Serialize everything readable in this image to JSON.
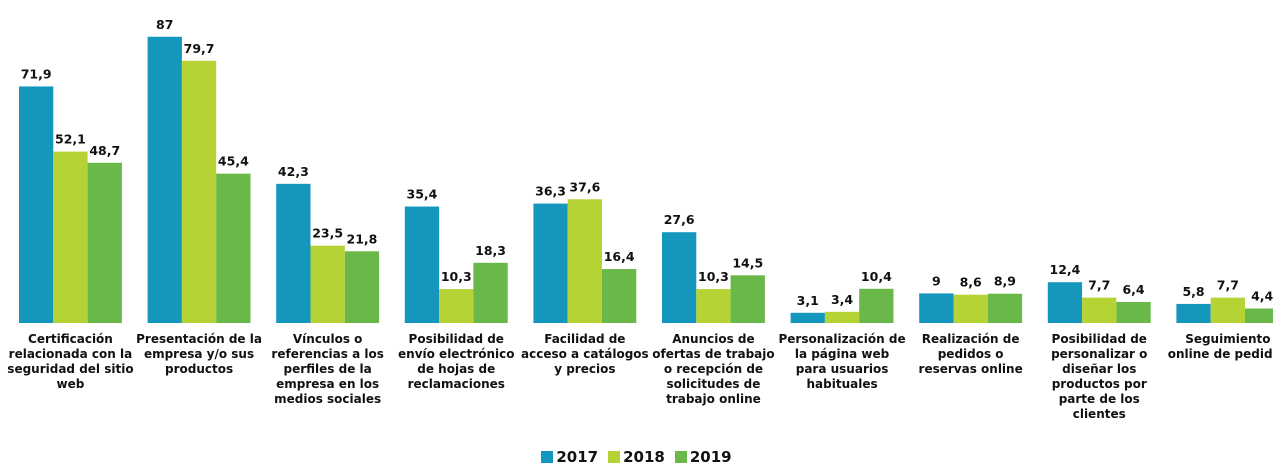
{
  "chart_data": {
    "type": "bar",
    "categories": [
      "Certificación relacionada con la seguridad del sitio web",
      "Presentación de la empresa y/o sus productos",
      "Vínculos o referencias a los perfiles de la empresa en los medios sociales",
      "Posibilidad de envío electrónico de hojas de reclamaciones",
      "Facilidad de acceso a catálogos y precios",
      "Anuncios de ofertas de trabajo o recepción de solicitudes de trabajo online",
      "Personalización de la página web para usuarios habituales",
      "Realización de pedidos o reservas online",
      "Posibilidad de personalizar o diseñar los productos por parte de los clientes",
      "Seguimiento online de pedidos"
    ],
    "series": [
      {
        "name": "2017",
        "color": "#1597bd",
        "values": [
          71.9,
          87,
          42.3,
          35.4,
          36.3,
          27.6,
          3.1,
          9,
          12.4,
          5.8
        ],
        "value_labels": [
          "71,9",
          "87",
          "42,3",
          "35,4",
          "36,3",
          "27,6",
          "3,1",
          "9",
          "12,4",
          "5,8"
        ]
      },
      {
        "name": "2018",
        "color": "#b5d334",
        "values": [
          52.1,
          79.7,
          23.5,
          10.3,
          37.6,
          10.3,
          3.4,
          8.6,
          7.7,
          7.7
        ],
        "value_labels": [
          "52,1",
          "79,7",
          "23,5",
          "10,3",
          "37,6",
          "10,3",
          "3,4",
          "8,6",
          "7,7",
          "7,7"
        ]
      },
      {
        "name": "2019",
        "color": "#6ab84a",
        "values": [
          48.7,
          45.4,
          21.8,
          18.3,
          16.4,
          14.5,
          10.4,
          8.9,
          6.4,
          4.4
        ],
        "value_labels": [
          "48,7",
          "45,4",
          "21,8",
          "18,3",
          "16,4",
          "14,5",
          "10,4",
          "8,9",
          "6,4",
          "4,4"
        ]
      }
    ],
    "legend": "bottom"
  }
}
